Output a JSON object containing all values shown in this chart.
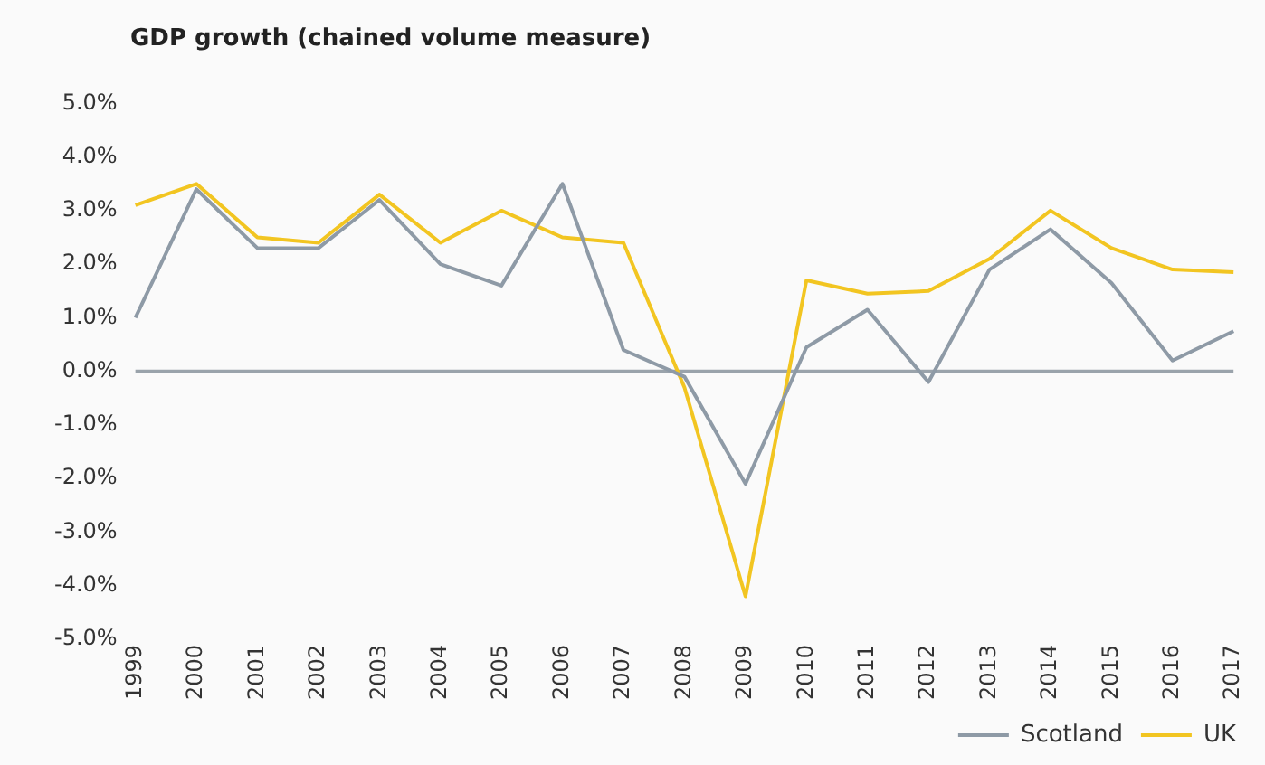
{
  "chart_data": {
    "type": "line",
    "title": "GDP growth (chained volume measure)",
    "categories": [
      "1999",
      "2000",
      "2001",
      "2002",
      "2003",
      "2004",
      "2005",
      "2006",
      "2007",
      "2008",
      "2009",
      "2010",
      "2011",
      "2012",
      "2013",
      "2014",
      "2015",
      "2016",
      "2017"
    ],
    "series": [
      {
        "name": "Scotland",
        "color": "#8e9aa6",
        "values": [
          1.0,
          3.4,
          2.3,
          2.3,
          3.2,
          2.0,
          1.6,
          3.5,
          0.4,
          -0.1,
          -2.1,
          0.45,
          1.15,
          -0.2,
          1.9,
          2.65,
          1.65,
          0.2,
          0.75
        ]
      },
      {
        "name": "UK",
        "color": "#f2c521",
        "values": [
          3.1,
          3.5,
          2.5,
          2.4,
          3.3,
          2.4,
          3.0,
          2.5,
          2.4,
          -0.3,
          -4.2,
          1.7,
          1.45,
          1.5,
          2.1,
          3.0,
          2.3,
          1.9,
          1.85
        ]
      }
    ],
    "ylim": [
      -5,
      5
    ],
    "yticks": [
      {
        "value": 5,
        "label": "5.0%"
      },
      {
        "value": 4,
        "label": "4.0%"
      },
      {
        "value": 3,
        "label": "3.0%"
      },
      {
        "value": 2,
        "label": "2.0%"
      },
      {
        "value": 1,
        "label": "1.0%"
      },
      {
        "value": 0,
        "label": "0.0%"
      },
      {
        "value": -1,
        "label": "-1.0%"
      },
      {
        "value": -2,
        "label": "-2.0%"
      },
      {
        "value": -3,
        "label": "-3.0%"
      },
      {
        "value": -4,
        "label": "-4.0%"
      },
      {
        "value": -5,
        "label": "-5.0%"
      }
    ],
    "ref_lines": [
      {
        "axis": "y",
        "value": 0,
        "color": "#9aa3ab"
      }
    ],
    "grid": false,
    "legend": "bottom right",
    "marker": "none",
    "line_style": "solid"
  }
}
